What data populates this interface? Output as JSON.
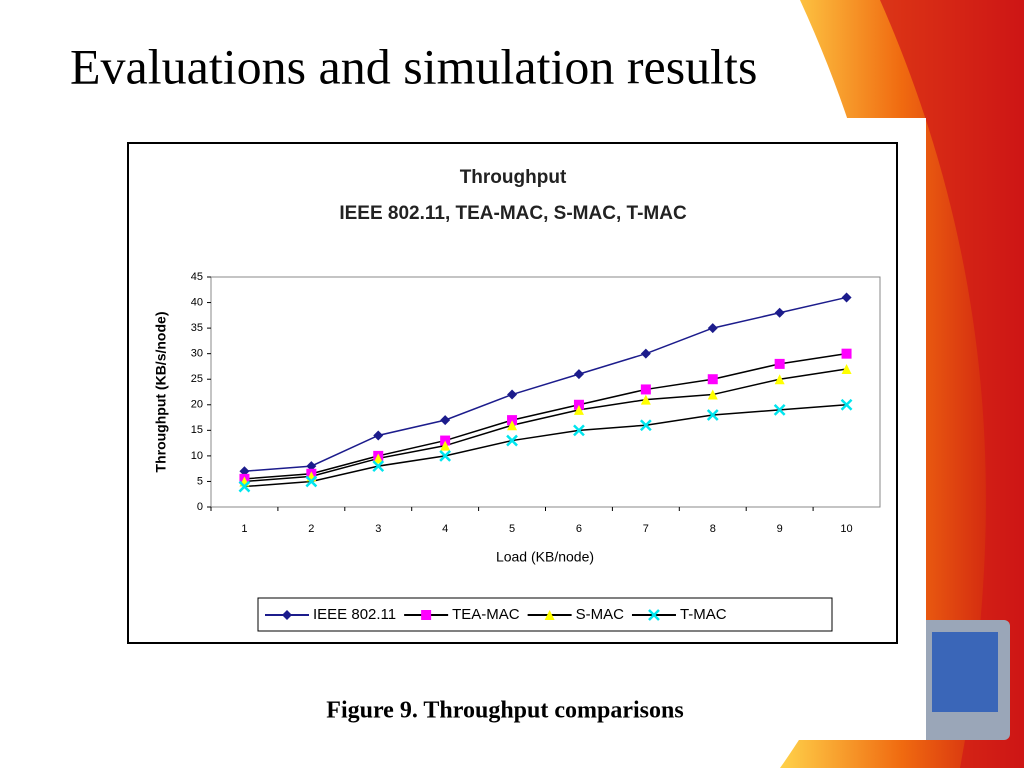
{
  "slide_title": "Evaluations and simulation results",
  "caption": "Figure 9.  Throughput comparisons",
  "chart_data": {
    "type": "line",
    "title": "Throughput",
    "subtitle": "IEEE 802.11, TEA-MAC, S-MAC, T-MAC",
    "x_label": "Load (KB/node)",
    "y_label": "Throughput (KB/s/node)",
    "categories": [
      "1",
      "2",
      "3",
      "4",
      "5",
      "6",
      "7",
      "8",
      "9",
      "10"
    ],
    "ylim": [
      0,
      45
    ],
    "yticks": [
      0,
      5,
      10,
      15,
      20,
      25,
      30,
      35,
      40,
      45
    ],
    "legend": "bottom",
    "series": [
      {
        "name": "IEEE 802.11",
        "color": "#1c1c8c",
        "line_color": "#1c1c8c",
        "marker": "diamond",
        "values": [
          7,
          8,
          14,
          17,
          22,
          26,
          30,
          35,
          38,
          41
        ]
      },
      {
        "name": "TEA-MAC",
        "color": "#ff00ff",
        "line_color": "#000000",
        "marker": "square",
        "values": [
          5.5,
          6.5,
          10,
          13,
          17,
          20,
          23,
          25,
          28,
          30
        ]
      },
      {
        "name": "S-MAC",
        "color": "#ffff00",
        "line_color": "#000000",
        "marker": "triangle",
        "values": [
          5,
          6,
          9.5,
          12,
          16,
          19,
          21,
          22,
          25,
          27
        ]
      },
      {
        "name": "T-MAC",
        "color": "#00e5ee",
        "line_color": "#000000",
        "marker": "x",
        "values": [
          4,
          5,
          8,
          10,
          13,
          15,
          16,
          18,
          19,
          20
        ]
      }
    ]
  }
}
